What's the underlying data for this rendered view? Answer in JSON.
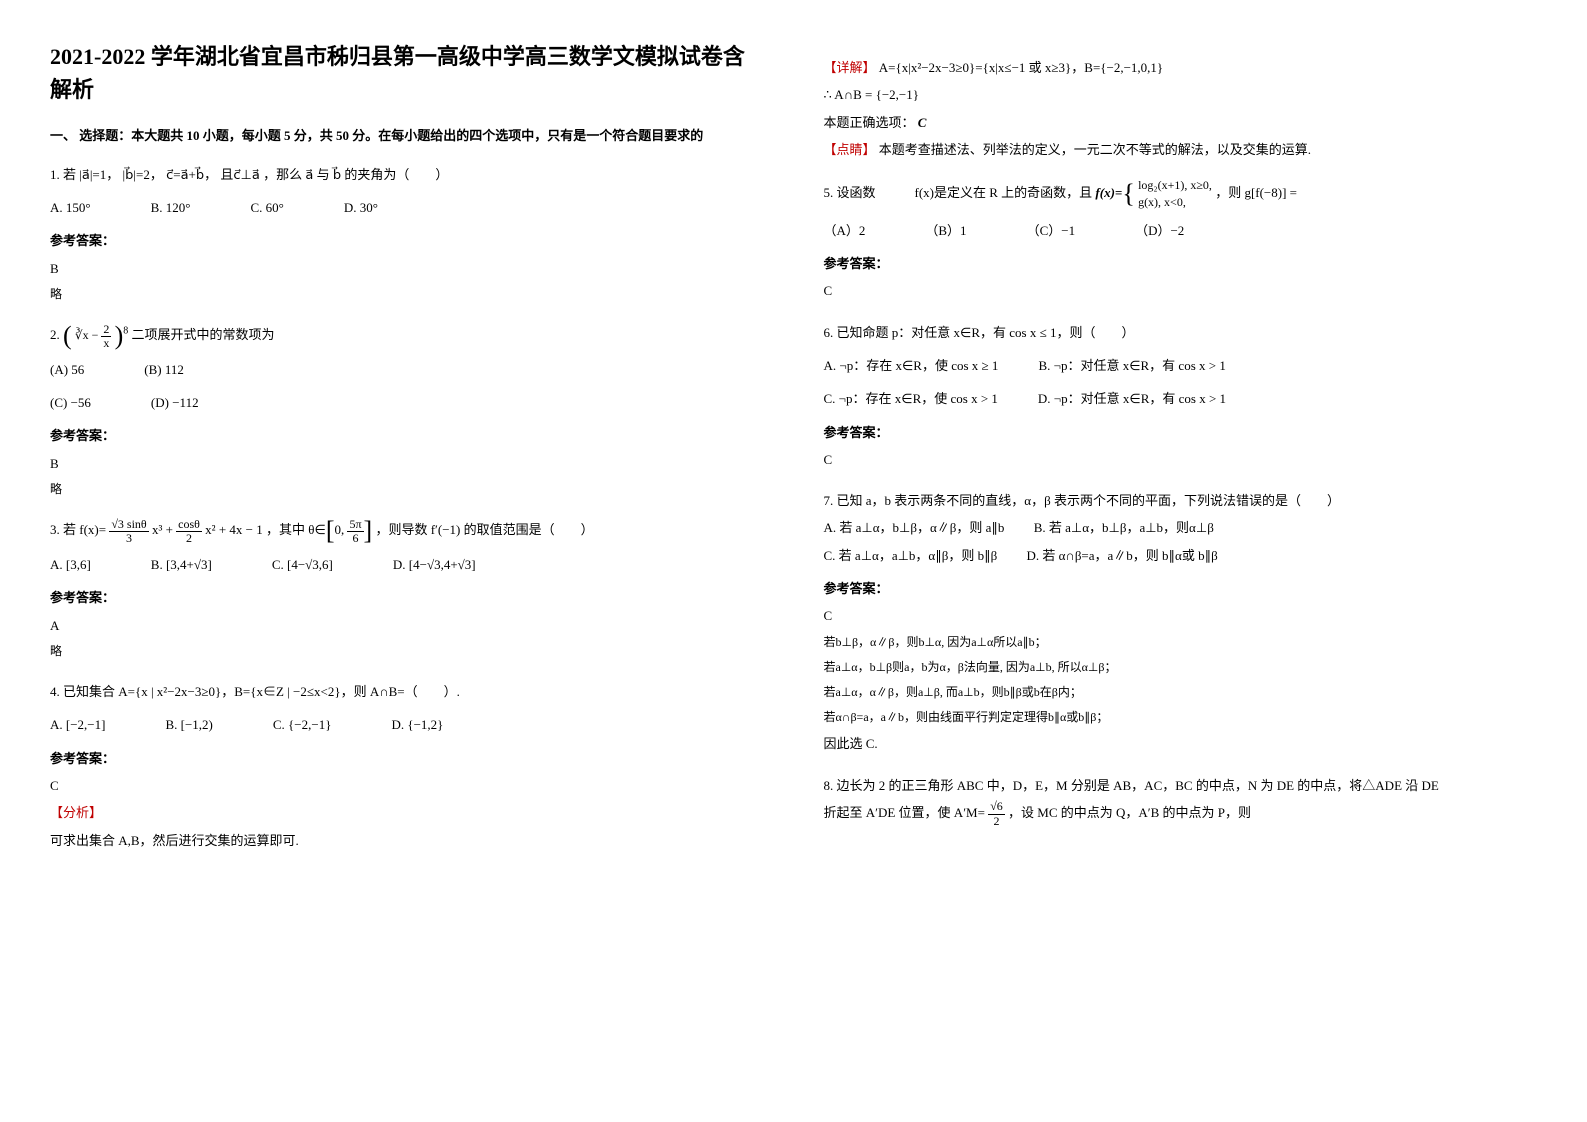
{
  "title": "2021-2022 学年湖北省宜昌市秭归县第一高级中学高三数学文模拟试卷含解析",
  "section1": "一、 选择题：本大题共 10 小题，每小题 5 分，共 50 分。在每小题给出的四个选项中，只有是一个符合题目要求的",
  "q1": {
    "stem_prefix": "1. 若",
    "a_mag": "|a⃗|=1",
    "b_mag": "|b⃗|=2",
    "c_eq": "c⃗=a⃗+b⃗",
    "perp": "且c⃗⊥a⃗",
    "tail": "，那么 a⃗ 与 b⃗ 的夹角为（　　）",
    "optA": "A.  150°",
    "optB": "B.  120°",
    "optC": "C.  60°",
    "optD": "D.  30°",
    "ans_label": "参考答案：",
    "ans": "B",
    "note": "略"
  },
  "q2": {
    "stem_prefix": "2. ",
    "expr": "（∛x − 2/x）⁸",
    "tail": " 二项展开式中的常数项为",
    "optA": "(A) 56",
    "optB": "(B) 112",
    "optC": "(C) −56",
    "optD": "(D) −112",
    "ans_label": "参考答案：",
    "ans": "B",
    "note": "略"
  },
  "q3": {
    "stem_prefix": "3. 若",
    "fx": "f(x)= (√3 sinθ/3) x³ + (cosθ/2) x² + 4x − 1",
    "middle": "，其中",
    "theta": "θ∈[0, 5π/6]",
    "tail": "，则导数 f′(−1) 的取值范围是（　　）",
    "optA": "A. [3,6]",
    "optB": "B. [3,4+√3]",
    "optC": "C. [4−√3,6]",
    "optD": "D. [4−√3,4+√3]",
    "ans_label": "参考答案：",
    "ans": "A",
    "note": "略"
  },
  "q4": {
    "stem": "4. 已知集合 A={x | x²−2x−3≥0}，B={x∈Z | −2≤x<2}，则 A∩B=（　　）.",
    "optA": "A. [−2,−1]",
    "optB": "B. [−1,2)",
    "optC": "C. {−2,−1}",
    "optD": "D. {−1,2}",
    "ans_label": "参考答案：",
    "ans": "C",
    "analysis_label": "【分析】",
    "analysis": "可求出集合 A,B，然后进行交集的运算即可.",
    "detail_label": "【详解】",
    "detail_line1": "A={x|x²−2x−3≥0}={x|x≤−1 或 x≥3}，B={−2,−1,0,1}",
    "detail_line2": "∴ A∩B = {−2,−1}",
    "correct_label": "本题正确选项：",
    "correct": "C",
    "comment_label": "【点睛】",
    "comment": "本题考查描述法、列举法的定义，一元二次不等式的解法，以及交集的运算."
  },
  "q5": {
    "stem_prefix": "5. 设函数　　　f(x)是定义在 R 上的奇函数，且",
    "piecewise_top": "log₂(x+1), x≥0,",
    "piecewise_bot": "g(x), x<0,",
    "tail": "，则 g[f(−8)] =",
    "optA": "（A）2",
    "optB": "（B）1",
    "optC": "（C）−1",
    "optD": "（D）−2",
    "ans_label": "参考答案：",
    "ans": "C"
  },
  "q6": {
    "stem": "6. 已知命题 p：对任意 x∈R，有 cos x ≤ 1，则（　　）",
    "optA": "A. ¬p：存在 x∈R，使 cos x ≥ 1",
    "optB": "B. ¬p：对任意 x∈R，有 cos x > 1",
    "optC": "C. ¬p：存在 x∈R，使 cos x > 1",
    "optD": "D. ¬p：对任意 x∈R，有 cos x > 1",
    "ans_label": "参考答案：",
    "ans": "C"
  },
  "q7": {
    "stem": "7. 已知 a，b 表示两条不同的直线，α，β 表示两个不同的平面，下列说法错误的是（　　）",
    "optA": "A. 若 a⊥α，b⊥β，α∥β，则 a∥b",
    "optB": "B. 若 a⊥α，b⊥β，a⊥b，则α⊥β",
    "optC": "C. 若 a⊥α，a⊥b，α∥β，则 b∥β",
    "optD": "D. 若 α∩β=a，a∥b，则 b∥α或 b∥β",
    "ans_label": "参考答案：",
    "ans": "C",
    "e1": "若b⊥β，α∥β，则b⊥α, 因为a⊥α所以a∥b；",
    "e2": "若a⊥α，b⊥β则a，b为α，β法向量, 因为a⊥b, 所以α⊥β；",
    "e3": "若a⊥α，α∥β，则a⊥β, 而a⊥b，则b∥β或b在β内；",
    "e4": "若α∩β=a，a∥b，则由线面平行判定定理得b∥α或b∥β；",
    "e5": "因此选 C."
  },
  "q8": {
    "stem_l1": "8. 边长为 2 的正三角形 ABC 中，D，E，M 分别是 AB，AC，BC 的中点，N 为 DE 的中点，将△ADE 沿 DE",
    "stem_l2_pre": "折起至 A′DE 位置，使 A′M=",
    "root6over2_num": "√6",
    "root6over2_den": "2",
    "stem_l2_post": "，设 MC 的中点为 Q，A′B 的中点为 P，则"
  }
}
